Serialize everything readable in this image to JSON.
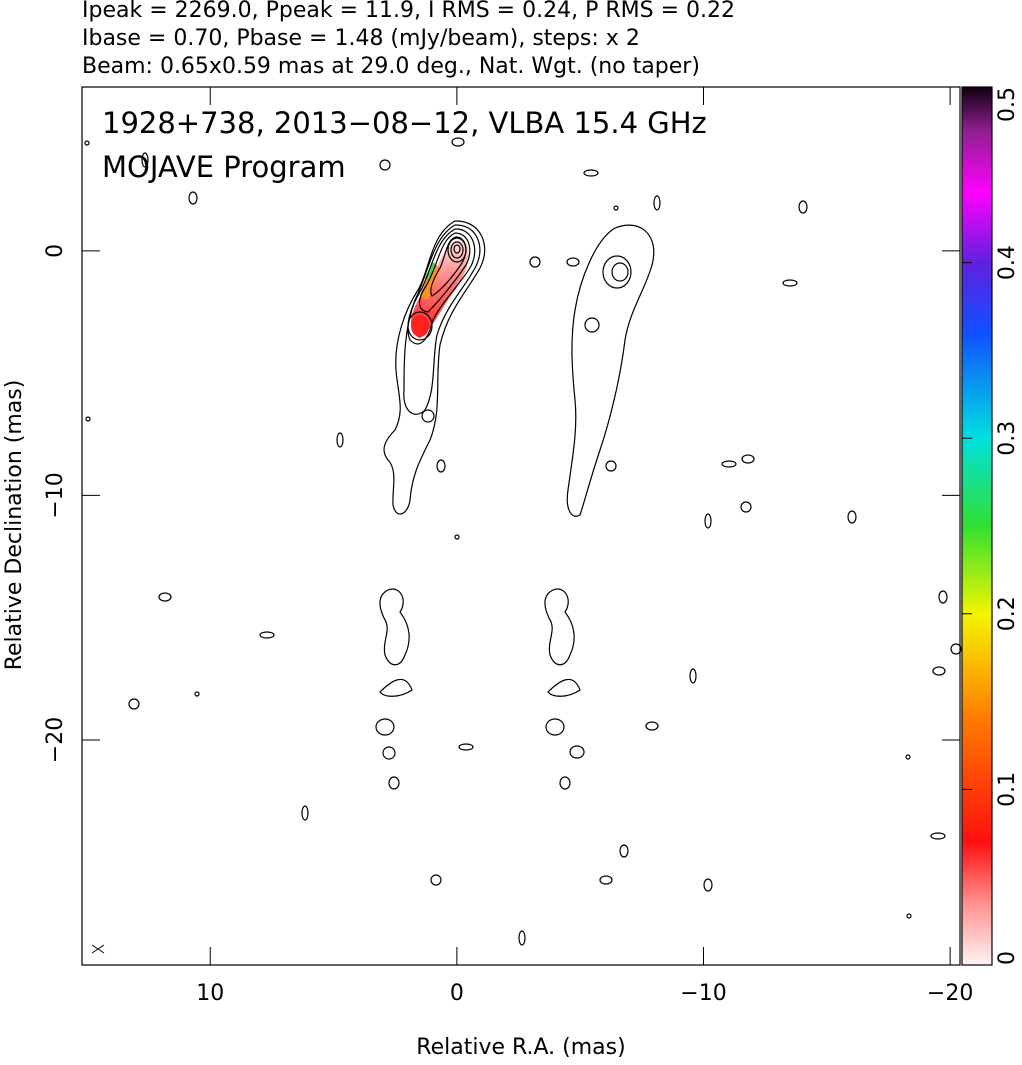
{
  "chart_data": {
    "type": "contour",
    "header_lines": [
      "Ipeak = 2269.0, Ppeak = 11.9, I RMS = 0.24, P RMS = 0.22",
      "Ibase = 0.70, Pbase = 1.48 (mJy/beam), steps: x 2",
      "Beam: 0.65x0.59 mas at 29.0 deg., Nat. Wgt. (no taper)"
    ],
    "annotations": [
      "1928+738, 2013−08−12, VLBA 15.4 GHz",
      "MOJAVE Program"
    ],
    "x_label": "Relative R.A. (mas)",
    "y_label": "Relative Declination (mas)",
    "xlim": [
      15.2,
      -20.4
    ],
    "ylim": [
      -29.2,
      6.7
    ],
    "xticks": [
      10,
      0,
      {
        "value": -10,
        "label": "−10"
      },
      {
        "value": -20,
        "label": "−20"
      }
    ],
    "yticks": [
      0,
      {
        "value": -10,
        "label": "−10"
      },
      {
        "value": -20,
        "label": "−20"
      }
    ],
    "colorbar_lim": [
      0,
      0.5
    ],
    "colorbar_ticks": [
      0,
      0.1,
      0.2,
      0.3,
      0.4,
      0.5
    ]
  }
}
